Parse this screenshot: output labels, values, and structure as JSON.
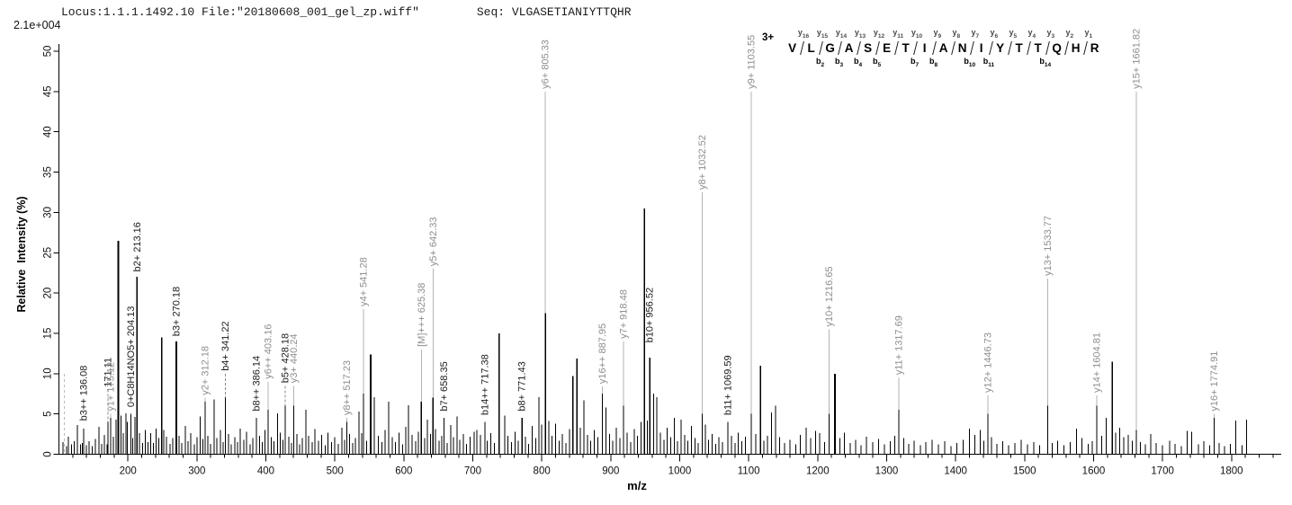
{
  "header": {
    "locus_file": "Locus:1.1.1.1492.10 File:\"20180608_001_gel_zp.wiff\"",
    "seq": "Seq: VLGASETIANIYTTQHR"
  },
  "chart_data": {
    "type": "bar",
    "subtype": "ms2-peptide-fragment-spectrum",
    "title": "Locus:1.1.1.1492.10 File:\"20180608_001_gel_zp.wiff\" Seq: VLGASETIANIYTTQHR",
    "scale_note": "2.1e+004",
    "xlabel": "m/z",
    "ylabel": "Relative  Intensity (%)",
    "xlim": [
      100,
      1872
    ],
    "ylim": [
      0,
      50
    ],
    "x_ticks": [
      200,
      300,
      400,
      500,
      600,
      700,
      800,
      900,
      1000,
      1100,
      1200,
      1300,
      1400,
      1500,
      1600,
      1700,
      1800
    ],
    "x_minor_start": 120,
    "x_minor_end": 1860,
    "x_minor_step": 20,
    "y_ticks": [
      0,
      5,
      10,
      15,
      20,
      25,
      30,
      35,
      40,
      45,
      50
    ],
    "grid": false,
    "legend": "none",
    "colors": {
      "peak": "#000000",
      "black_label": "#1a1a1a",
      "gray_label": "#8e8e8e",
      "leader": "#b3b3b3"
    },
    "dashed_marker": {
      "mz": 108,
      "i": 10
    },
    "labeled_peaks": [
      {
        "mz": 136.08,
        "i": 3.2,
        "lb": 3.8,
        "label": "b3++ 136.08",
        "color": "black"
      },
      {
        "mz": 171.11,
        "i": 4.0,
        "lb": 8.0,
        "label": "171.11",
        "color": "black"
      },
      {
        "mz": 175.12,
        "i": 4.5,
        "lb": 5.0,
        "label": "y1+ 175.12",
        "color": "gray"
      },
      {
        "mz": 204.13,
        "i": 5.0,
        "lb": 5.5,
        "label": "0+C8H14NO5+ 204.13",
        "color": "black"
      },
      {
        "mz": 213.16,
        "i": 22.0,
        "lb": 22.3,
        "label": "b2+ 213.16",
        "color": "black"
      },
      {
        "mz": 270.18,
        "i": 14.0,
        "lb": 14.3,
        "label": "b3+ 270.18",
        "color": "black"
      },
      {
        "mz": 312.18,
        "i": 6.5,
        "lb": 7.0,
        "label": "y2+ 312.18",
        "color": "gray"
      },
      {
        "mz": 341.22,
        "i": 7.0,
        "lb": 10.0,
        "label": "b4+ 341.22",
        "color": "black"
      },
      {
        "mz": 386.14,
        "i": 4.5,
        "lb": 5.0,
        "label": "b8++ 386.14",
        "color": "black"
      },
      {
        "mz": 403.16,
        "i": 5.5,
        "lb": 9.0,
        "label": "y6++ 403.16",
        "color": "gray"
      },
      {
        "mz": 428.18,
        "i": 6.0,
        "lb": 8.5,
        "label": "b5+ 428.18",
        "color": "black"
      },
      {
        "mz": 440.24,
        "i": 6.0,
        "lb": 8.5,
        "label": "y3+ 440.24",
        "color": "gray"
      },
      {
        "mz": 517.23,
        "i": 4.0,
        "lb": 4.5,
        "label": "y8++ 517.23",
        "color": "gray"
      },
      {
        "mz": 541.28,
        "i": 7.5,
        "lb": 18.0,
        "label": "y4+ 541.28",
        "color": "gray"
      },
      {
        "mz": 625.38,
        "i": 6.5,
        "lb": 13.0,
        "label": "[M]+++ 625.38",
        "color": "gray"
      },
      {
        "mz": 642.33,
        "i": 7.0,
        "lb": 23.0,
        "label": "y5+ 642.33",
        "color": "gray"
      },
      {
        "mz": 658.35,
        "i": 4.5,
        "lb": 5.0,
        "label": "b7+ 658.35",
        "color": "black"
      },
      {
        "mz": 717.38,
        "i": 4.0,
        "lb": 4.5,
        "label": "b14++ 717.38",
        "color": "black"
      },
      {
        "mz": 771.43,
        "i": 4.5,
        "lb": 5.0,
        "label": "b8+ 771.43",
        "color": "black"
      },
      {
        "mz": 805.33,
        "i": 17.5,
        "lb": 45.0,
        "label": "y6+ 805.33",
        "color": "gray"
      },
      {
        "mz": 887.95,
        "i": 7.5,
        "lb": 8.4,
        "label": "y16++ 887.95",
        "color": "gray"
      },
      {
        "mz": 918.48,
        "i": 6.0,
        "lb": 14.0,
        "label": "y7+ 918.48",
        "color": "gray"
      },
      {
        "mz": 956.52,
        "i": 12.0,
        "lb": 13.5,
        "label": "b10+ 956.52",
        "color": "black"
      },
      {
        "mz": 1032.52,
        "i": 5.0,
        "lb": 32.5,
        "label": "y8+ 1032.52",
        "color": "gray"
      },
      {
        "mz": 1069.59,
        "i": 4.0,
        "lb": 4.5,
        "label": "b11+ 1069.59",
        "color": "black"
      },
      {
        "mz": 1103.55,
        "i": 5.0,
        "lb": 45.0,
        "label": "y9+ 1103.55",
        "color": "gray"
      },
      {
        "mz": 1216.65,
        "i": 5.0,
        "lb": 15.5,
        "label": "y10+ 1216.65",
        "color": "gray"
      },
      {
        "mz": 1317.69,
        "i": 5.5,
        "lb": 9.5,
        "label": "y11+ 1317.69",
        "color": "gray"
      },
      {
        "mz": 1446.73,
        "i": 5.0,
        "lb": 7.3,
        "label": "y12+ 1446.73",
        "color": "gray"
      },
      {
        "mz": 1533.77,
        "i": 6.0,
        "lb": 21.8,
        "label": "y13+ 1533.77",
        "color": "gray"
      },
      {
        "mz": 1604.81,
        "i": 6.0,
        "lb": 7.3,
        "label": "y14+ 1604.81",
        "color": "gray"
      },
      {
        "mz": 1661.82,
        "i": 3.0,
        "lb": 45.0,
        "label": "y15+ 1661.82",
        "color": "gray"
      },
      {
        "mz": 1774.91,
        "i": 4.5,
        "lb": 5.0,
        "label": "y16+ 1774.91",
        "color": "gray"
      }
    ],
    "background_peaks": [
      [
        106,
        1.5
      ],
      [
        111,
        1.0
      ],
      [
        114,
        2.2
      ],
      [
        118,
        1.2
      ],
      [
        122,
        1.6
      ],
      [
        127,
        3.6
      ],
      [
        131,
        1.2
      ],
      [
        134,
        1.4
      ],
      [
        140,
        1.1
      ],
      [
        144,
        1.6
      ],
      [
        148,
        1.0
      ],
      [
        153,
        1.9
      ],
      [
        158,
        3.4
      ],
      [
        162,
        1.3
      ],
      [
        166,
        2.4
      ],
      [
        170,
        1.2
      ],
      [
        179,
        2.2
      ],
      [
        183,
        4.3
      ],
      [
        186,
        26.5
      ],
      [
        190,
        4.8
      ],
      [
        193,
        2.6
      ],
      [
        197,
        5.1
      ],
      [
        199,
        4.0
      ],
      [
        207,
        2.0
      ],
      [
        210,
        4.6
      ],
      [
        217,
        2.6
      ],
      [
        221,
        1.4
      ],
      [
        225,
        3.0
      ],
      [
        229,
        1.5
      ],
      [
        233,
        2.6
      ],
      [
        237,
        1.4
      ],
      [
        241,
        3.2
      ],
      [
        245,
        2.0
      ],
      [
        249,
        14.5
      ],
      [
        252,
        3.0
      ],
      [
        256,
        2.2
      ],
      [
        261,
        1.3
      ],
      [
        265,
        2.0
      ],
      [
        274,
        2.3
      ],
      [
        278,
        1.4
      ],
      [
        283,
        3.5
      ],
      [
        287,
        1.6
      ],
      [
        291,
        2.6
      ],
      [
        296,
        1.2
      ],
      [
        300,
        2.1
      ],
      [
        305,
        4.7
      ],
      [
        309,
        1.9
      ],
      [
        316,
        2.3
      ],
      [
        320,
        1.3
      ],
      [
        325,
        6.8
      ],
      [
        329,
        2.0
      ],
      [
        334,
        3.0
      ],
      [
        338,
        1.5
      ],
      [
        346,
        2.5
      ],
      [
        350,
        1.2
      ],
      [
        355,
        2.1
      ],
      [
        359,
        1.5
      ],
      [
        363,
        3.2
      ],
      [
        368,
        1.8
      ],
      [
        372,
        2.8
      ],
      [
        377,
        1.2
      ],
      [
        381,
        2.0
      ],
      [
        391,
        2.3
      ],
      [
        395,
        1.5
      ],
      [
        399,
        3.0
      ],
      [
        408,
        2.1
      ],
      [
        412,
        1.6
      ],
      [
        417,
        5.1
      ],
      [
        421,
        2.7
      ],
      [
        425,
        1.8
      ],
      [
        433,
        2.2
      ],
      [
        437,
        1.4
      ],
      [
        445,
        2.5
      ],
      [
        449,
        1.2
      ],
      [
        453,
        2.0
      ],
      [
        458,
        5.5
      ],
      [
        462,
        2.3
      ],
      [
        467,
        1.5
      ],
      [
        471,
        3.1
      ],
      [
        476,
        1.7
      ],
      [
        481,
        2.4
      ],
      [
        486,
        1.1
      ],
      [
        490,
        2.7
      ],
      [
        495,
        1.5
      ],
      [
        500,
        2.1
      ],
      [
        505,
        1.3
      ],
      [
        510,
        3.3
      ],
      [
        514,
        1.8
      ],
      [
        521,
        2.5
      ],
      [
        526,
        1.4
      ],
      [
        530,
        2.0
      ],
      [
        535,
        5.3
      ],
      [
        539,
        2.6
      ],
      [
        546,
        1.7
      ],
      [
        552,
        12.4
      ],
      [
        557,
        7.1
      ],
      [
        563,
        2.3
      ],
      [
        568,
        1.5
      ],
      [
        573,
        3.0
      ],
      [
        578,
        6.5
      ],
      [
        583,
        2.1
      ],
      [
        588,
        1.5
      ],
      [
        593,
        2.7
      ],
      [
        598,
        1.2
      ],
      [
        603,
        3.4
      ],
      [
        607,
        6.1
      ],
      [
        612,
        2.4
      ],
      [
        617,
        1.6
      ],
      [
        621,
        2.8
      ],
      [
        630,
        2.0
      ],
      [
        634,
        4.3
      ],
      [
        639,
        2.5
      ],
      [
        646,
        3.1
      ],
      [
        651,
        1.7
      ],
      [
        655,
        2.3
      ],
      [
        663,
        1.4
      ],
      [
        668,
        3.6
      ],
      [
        672,
        2.1
      ],
      [
        677,
        4.7
      ],
      [
        681,
        1.8
      ],
      [
        686,
        2.5
      ],
      [
        691,
        1.3
      ],
      [
        696,
        2.2
      ],
      [
        702,
        2.8
      ],
      [
        706,
        3.0
      ],
      [
        711,
        2.4
      ],
      [
        721,
        1.7
      ],
      [
        726,
        2.6
      ],
      [
        731,
        1.4
      ],
      [
        738,
        15.0
      ],
      [
        746,
        4.8
      ],
      [
        751,
        2.3
      ],
      [
        756,
        1.5
      ],
      [
        761,
        2.8
      ],
      [
        766,
        1.7
      ],
      [
        776,
        2.2
      ],
      [
        781,
        1.3
      ],
      [
        786,
        3.5
      ],
      [
        791,
        2.0
      ],
      [
        796,
        7.1
      ],
      [
        800,
        3.7
      ],
      [
        810,
        4.1
      ],
      [
        815,
        2.3
      ],
      [
        820,
        3.8
      ],
      [
        825,
        1.7
      ],
      [
        830,
        2.5
      ],
      [
        835,
        1.4
      ],
      [
        840,
        3.1
      ],
      [
        845,
        9.7
      ],
      [
        851,
        11.9
      ],
      [
        856,
        3.3
      ],
      [
        861,
        6.7
      ],
      [
        866,
        2.4
      ],
      [
        871,
        1.7
      ],
      [
        876,
        3.0
      ],
      [
        881,
        2.1
      ],
      [
        893,
        5.8
      ],
      [
        898,
        2.5
      ],
      [
        903,
        1.7
      ],
      [
        908,
        3.3
      ],
      [
        913,
        2.0
      ],
      [
        924,
        2.7
      ],
      [
        929,
        1.5
      ],
      [
        934,
        3.1
      ],
      [
        939,
        2.3
      ],
      [
        944,
        4.0
      ],
      [
        949,
        30.5
      ],
      [
        953,
        4.2
      ],
      [
        962,
        7.5
      ],
      [
        967,
        7.1
      ],
      [
        972,
        2.7
      ],
      [
        977,
        1.8
      ],
      [
        982,
        3.3
      ],
      [
        987,
        2.1
      ],
      [
        992,
        4.5
      ],
      [
        997,
        1.6
      ],
      [
        1002,
        4.3
      ],
      [
        1007,
        2.4
      ],
      [
        1012,
        1.7
      ],
      [
        1017,
        3.5
      ],
      [
        1022,
        2.0
      ],
      [
        1027,
        1.4
      ],
      [
        1037,
        3.7
      ],
      [
        1042,
        1.8
      ],
      [
        1047,
        2.5
      ],
      [
        1052,
        1.3
      ],
      [
        1057,
        2.1
      ],
      [
        1062,
        1.5
      ],
      [
        1075,
        2.3
      ],
      [
        1080,
        1.4
      ],
      [
        1085,
        2.7
      ],
      [
        1090,
        1.6
      ],
      [
        1095,
        2.2
      ],
      [
        1110,
        2.5
      ],
      [
        1117,
        11.0
      ],
      [
        1122,
        1.7
      ],
      [
        1127,
        2.3
      ],
      [
        1133,
        5.2
      ],
      [
        1139,
        6.0
      ],
      [
        1145,
        2.1
      ],
      [
        1152,
        1.4
      ],
      [
        1160,
        1.8
      ],
      [
        1168,
        1.2
      ],
      [
        1175,
        2.4
      ],
      [
        1183,
        3.3
      ],
      [
        1190,
        2.0
      ],
      [
        1197,
        2.9
      ],
      [
        1203,
        2.6
      ],
      [
        1210,
        1.5
      ],
      [
        1225,
        10.0
      ],
      [
        1232,
        2.0
      ],
      [
        1239,
        2.7
      ],
      [
        1247,
        1.4
      ],
      [
        1255,
        1.8
      ],
      [
        1263,
        1.1
      ],
      [
        1271,
        2.2
      ],
      [
        1280,
        1.5
      ],
      [
        1288,
        1.9
      ],
      [
        1297,
        1.2
      ],
      [
        1305,
        1.6
      ],
      [
        1312,
        2.3
      ],
      [
        1325,
        2.0
      ],
      [
        1332,
        1.3
      ],
      [
        1340,
        1.7
      ],
      [
        1349,
        1.1
      ],
      [
        1357,
        1.5
      ],
      [
        1366,
        1.8
      ],
      [
        1375,
        1.2
      ],
      [
        1384,
        1.6
      ],
      [
        1393,
        1.0
      ],
      [
        1402,
        1.4
      ],
      [
        1411,
        1.8
      ],
      [
        1420,
        3.2
      ],
      [
        1428,
        2.4
      ],
      [
        1436,
        3.0
      ],
      [
        1441,
        1.7
      ],
      [
        1452,
        2.1
      ],
      [
        1460,
        1.3
      ],
      [
        1468,
        1.6
      ],
      [
        1477,
        1.1
      ],
      [
        1486,
        1.4
      ],
      [
        1495,
        1.8
      ],
      [
        1504,
        1.2
      ],
      [
        1513,
        1.5
      ],
      [
        1522,
        1.1
      ],
      [
        1540,
        1.4
      ],
      [
        1548,
        1.7
      ],
      [
        1557,
        1.1
      ],
      [
        1566,
        1.5
      ],
      [
        1575,
        3.2
      ],
      [
        1583,
        2.0
      ],
      [
        1592,
        1.3
      ],
      [
        1598,
        1.6
      ],
      [
        1612,
        2.3
      ],
      [
        1618,
        4.5
      ],
      [
        1627,
        11.5
      ],
      [
        1632,
        2.7
      ],
      [
        1638,
        3.3
      ],
      [
        1644,
        2.1
      ],
      [
        1650,
        2.4
      ],
      [
        1656,
        1.7
      ],
      [
        1668,
        1.5
      ],
      [
        1675,
        1.2
      ],
      [
        1683,
        2.5
      ],
      [
        1691,
        1.4
      ],
      [
        1700,
        1.1
      ],
      [
        1710,
        1.7
      ],
      [
        1718,
        1.3
      ],
      [
        1727,
        1.0
      ],
      [
        1736,
        2.9
      ],
      [
        1742,
        2.8
      ],
      [
        1752,
        1.2
      ],
      [
        1760,
        1.6
      ],
      [
        1768,
        1.1
      ],
      [
        1782,
        1.4
      ],
      [
        1790,
        1.0
      ],
      [
        1798,
        1.3
      ],
      [
        1806,
        4.2
      ],
      [
        1815,
        1.1
      ],
      [
        1822,
        4.3
      ]
    ],
    "annotation": {
      "charge": "3+",
      "residues": [
        "V",
        "L",
        "G",
        "A",
        "S",
        "E",
        "T",
        "I",
        "A",
        "N",
        "I",
        "Y",
        "T",
        "T",
        "Q",
        "H",
        "R"
      ],
      "junctions": [
        {
          "y": "y16",
          "b": null
        },
        {
          "y": "y15",
          "b": "b2"
        },
        {
          "y": "y14",
          "b": "b3"
        },
        {
          "y": "y13",
          "b": "b4"
        },
        {
          "y": "y12",
          "b": "b5"
        },
        {
          "y": "y11",
          "b": null
        },
        {
          "y": "y10",
          "b": "b7"
        },
        {
          "y": "y9",
          "b": "b8"
        },
        {
          "y": "y8",
          "b": null
        },
        {
          "y": "y7",
          "b": "b10"
        },
        {
          "y": "y6",
          "b": "b11"
        },
        {
          "y": "y5",
          "b": null
        },
        {
          "y": "y4",
          "b": null
        },
        {
          "y": "y3",
          "b": "b14"
        },
        {
          "y": "y2",
          "b": null
        },
        {
          "y": "y1",
          "b": null
        }
      ]
    }
  }
}
